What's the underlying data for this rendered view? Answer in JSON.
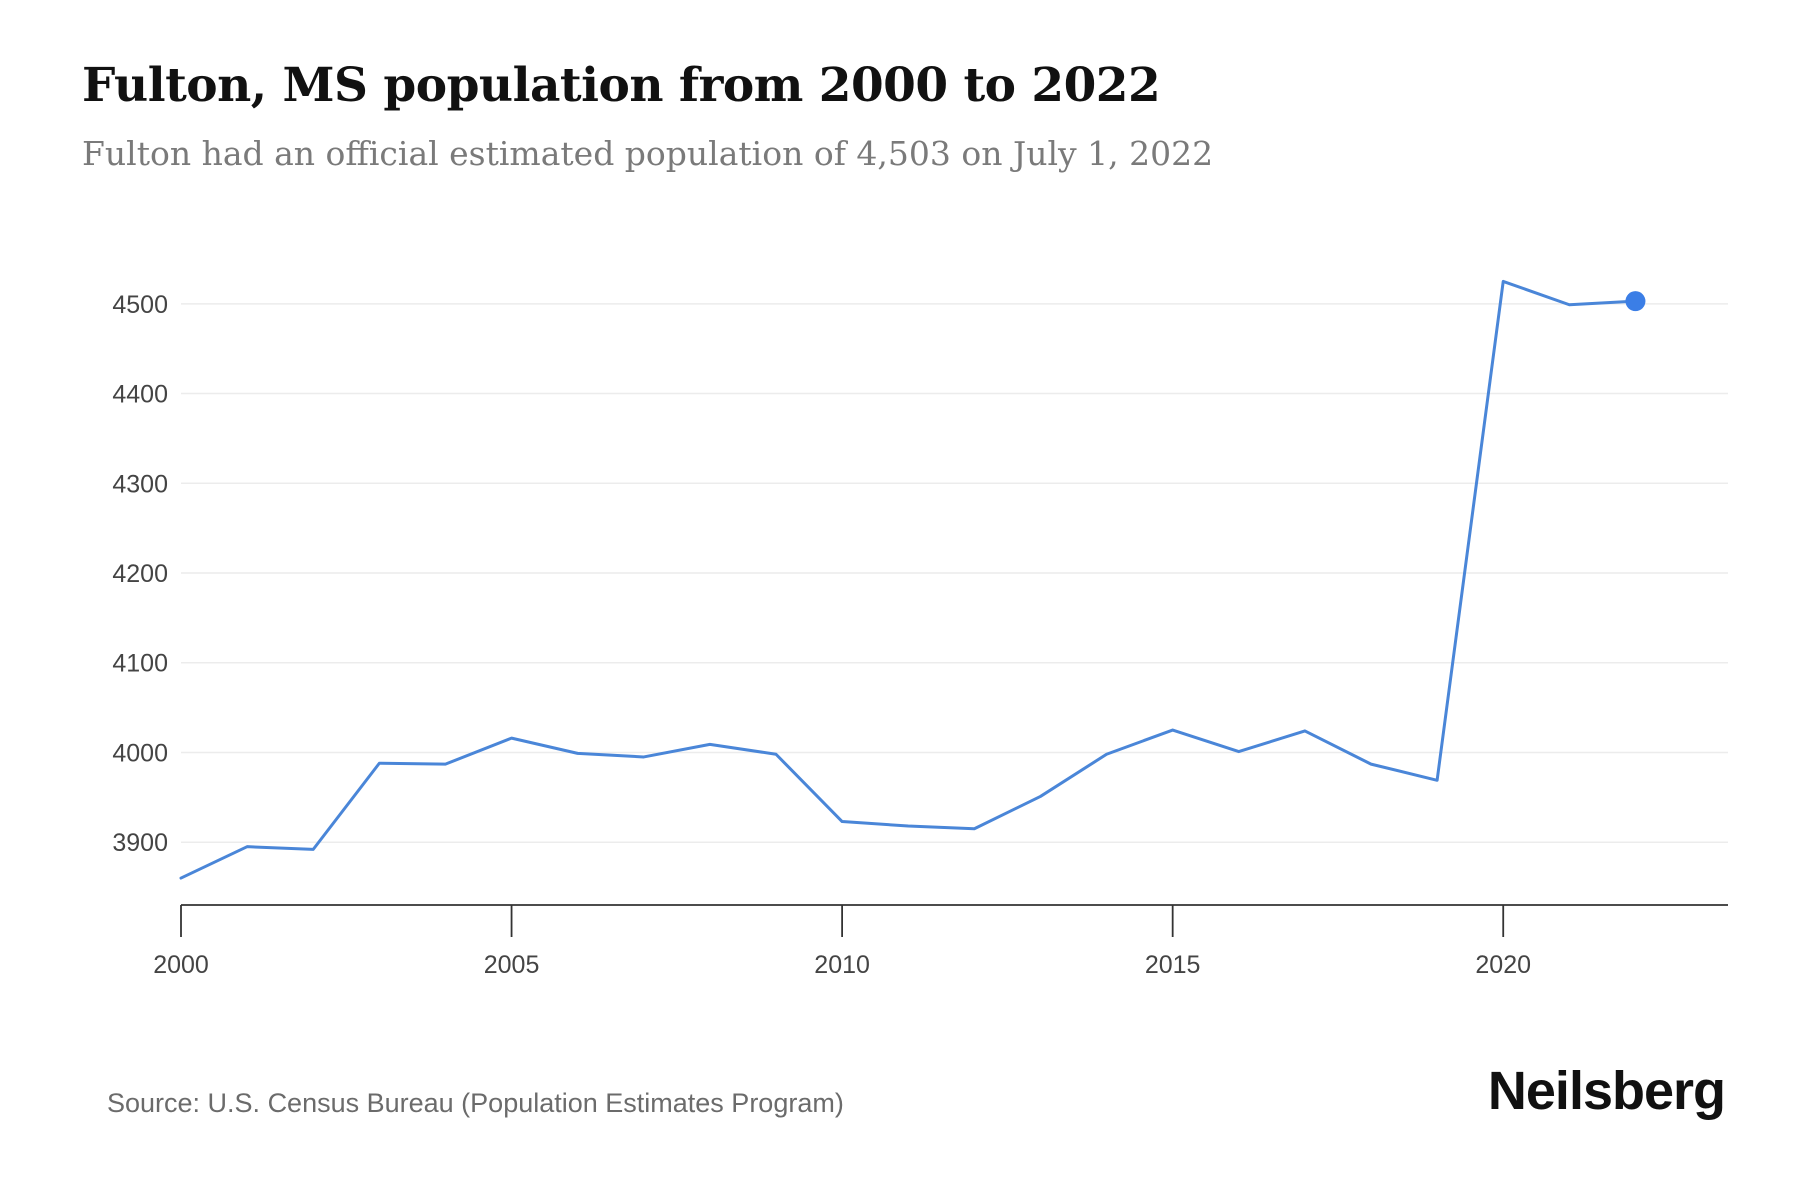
{
  "header": {
    "title": "Fulton, MS population from 2000 to 2022",
    "subtitle": "Fulton had an official estimated population of 4,503 on July 1, 2022"
  },
  "footer": {
    "source": "Source: U.S. Census Bureau (Population Estimates Program)",
    "brand": "Neilsberg"
  },
  "colors": {
    "line": "#4a86d8",
    "marker": "#3b7ee6",
    "grid": "#ececec",
    "axis": "#333333",
    "tick_text": "#444444"
  },
  "chart_data": {
    "type": "line",
    "title": "Fulton, MS population from 2000 to 2022",
    "xlabel": "",
    "ylabel": "",
    "x": [
      2000,
      2001,
      2002,
      2003,
      2004,
      2005,
      2006,
      2007,
      2008,
      2009,
      2010,
      2011,
      2012,
      2013,
      2014,
      2015,
      2016,
      2017,
      2018,
      2019,
      2020,
      2021,
      2022
    ],
    "series": [
      {
        "values": [
          3860,
          3895,
          3892,
          3988,
          3987,
          4016,
          3999,
          3995,
          4009,
          3998,
          3923,
          3918,
          3915,
          3951,
          3998,
          4025,
          4001,
          4024,
          3987,
          3969,
          4525,
          4499,
          4503
        ]
      }
    ],
    "xticks": [
      2000,
      2005,
      2010,
      2015,
      2020
    ],
    "yticks": [
      3900,
      4000,
      4100,
      4200,
      4300,
      4400,
      4500
    ],
    "xlim": [
      2000,
      2023.4
    ],
    "ylim": [
      3830,
      4560
    ],
    "grid": true,
    "highlight_last_point": true
  }
}
